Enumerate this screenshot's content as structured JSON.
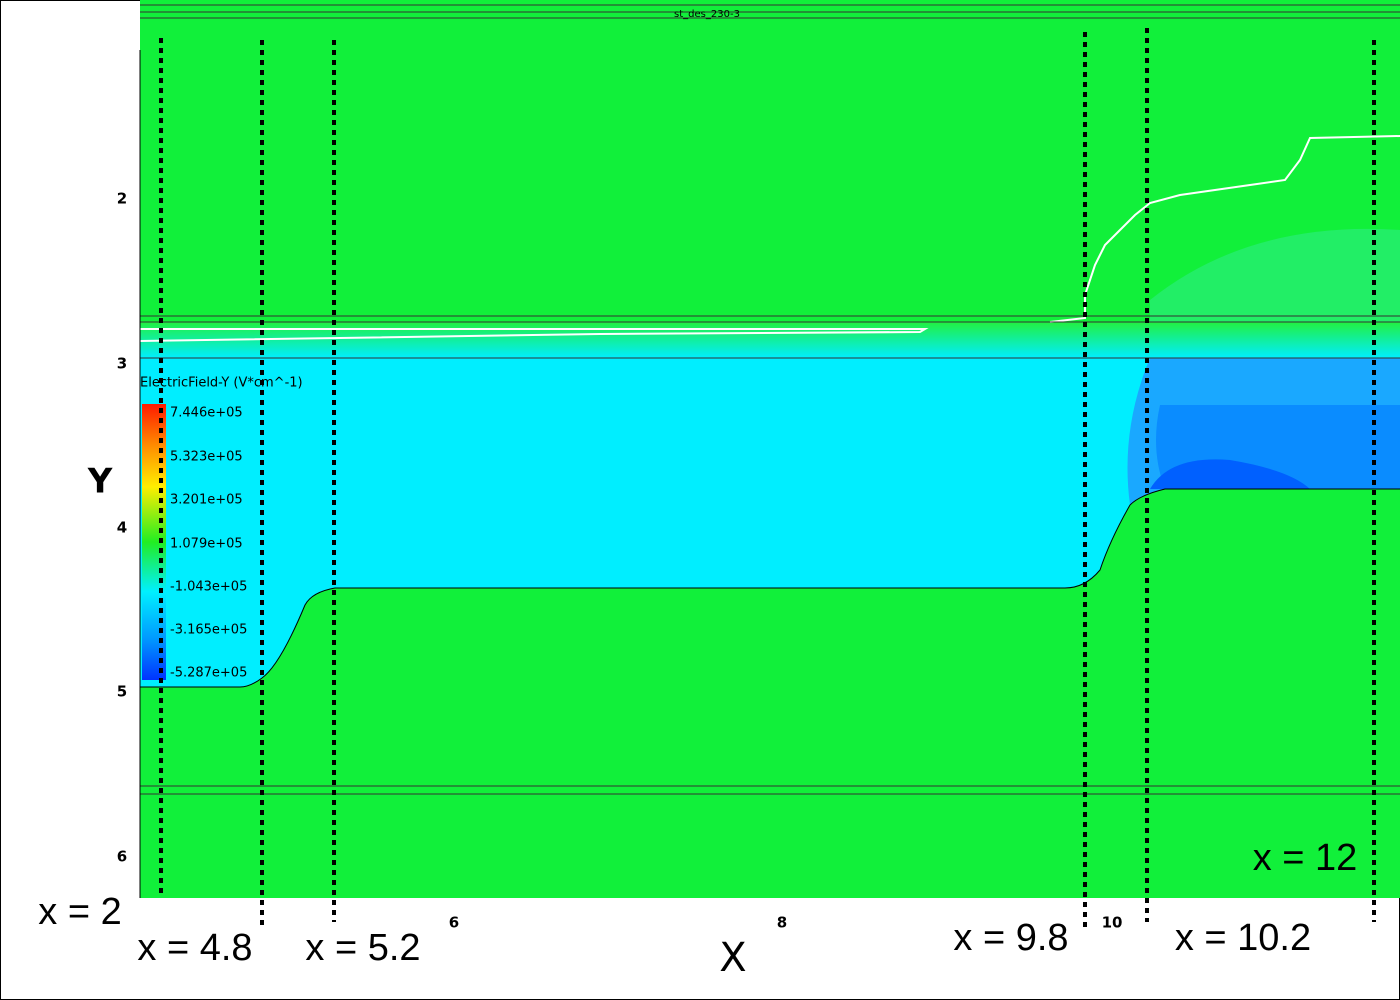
{
  "plot": {
    "title": "st_des_230-3",
    "x_axis": {
      "label": "X",
      "ticks": [
        "6",
        "8",
        "10"
      ]
    },
    "y_axis": {
      "label": "Y",
      "ticks": [
        "2",
        "3",
        "4",
        "5",
        "6"
      ]
    },
    "legend": {
      "title": "ElectricField-Y (V*cm^-1)",
      "labels": [
        "7.446e+05",
        "5.323e+05",
        "3.201e+05",
        "1.079e+05",
        "-1.043e+05",
        "-3.165e+05",
        "-5.287e+05"
      ]
    }
  },
  "annotations": [
    "x = 2",
    "x = 4.8",
    "x = 5.2",
    "x = 9.8",
    "x = 10.2",
    "x = 12"
  ]
}
